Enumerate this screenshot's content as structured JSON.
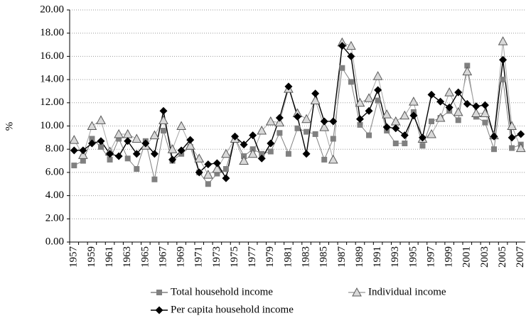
{
  "chart_data": {
    "type": "line",
    "y_label": "%",
    "categories": [
      "1957",
      null,
      "1959",
      null,
      "1961",
      null,
      "1963",
      null,
      "1965",
      null,
      "1967",
      null,
      "1969",
      null,
      "1971",
      null,
      "1973",
      null,
      "1975",
      null,
      "1977",
      null,
      "1979",
      null,
      "1981",
      null,
      "1983",
      null,
      "1985",
      null,
      "1987",
      null,
      "1989",
      null,
      "1991",
      null,
      "1993",
      null,
      "1995",
      null,
      "1997",
      null,
      "1999",
      null,
      "2001",
      null,
      "2003",
      null,
      "2005",
      null,
      "2007"
    ],
    "ylim": [
      0,
      20
    ],
    "yticks": [
      {
        "value": 0,
        "label": "0.00"
      },
      {
        "value": 2,
        "label": "2.00"
      },
      {
        "value": 4,
        "label": "4.00"
      },
      {
        "value": 6,
        "label": "6.00"
      },
      {
        "value": 8,
        "label": "8.00"
      },
      {
        "value": 10,
        "label": "10.00"
      },
      {
        "value": 12,
        "label": "12.00"
      },
      {
        "value": 14,
        "label": "14.00"
      },
      {
        "value": 16,
        "label": "16.00"
      },
      {
        "value": 18,
        "label": "18.00"
      },
      {
        "value": 20,
        "label": "20.00"
      }
    ],
    "grid": true,
    "legend": "bottom",
    "series": [
      {
        "name": "Total household income",
        "color": "#808080",
        "marker": "square",
        "values": [
          6.6,
          7.0,
          8.9,
          8.2,
          7.1,
          8.9,
          7.2,
          6.3,
          8.7,
          5.4,
          9.6,
          7.0,
          7.6,
          8.2,
          6.0,
          5.0,
          5.9,
          6.3,
          9.0,
          7.4,
          8.0,
          7.6,
          7.8,
          9.4,
          7.6,
          9.8,
          9.5,
          9.3,
          7.1,
          8.9,
          15.0,
          13.8,
          10.1,
          9.2,
          12.2,
          9.6,
          8.5,
          8.5,
          11.2,
          8.3,
          10.4,
          10.7,
          11.3,
          10.5,
          15.2,
          10.8,
          10.3,
          8.0,
          14.0,
          8.1,
          8.4
        ]
      },
      {
        "name": "Individual income",
        "color": "#a6a6a6",
        "marker": "triangle",
        "values": [
          8.8,
          7.5,
          10.0,
          10.5,
          7.8,
          9.3,
          9.3,
          8.9,
          8.3,
          9.2,
          10.5,
          8.0,
          10.0,
          8.3,
          7.2,
          5.8,
          6.3,
          7.6,
          8.9,
          7.0,
          7.6,
          9.6,
          10.4,
          10.3,
          13.2,
          11.1,
          10.6,
          12.2,
          9.9,
          7.1,
          17.2,
          16.9,
          12.0,
          12.4,
          14.3,
          11.0,
          10.4,
          10.9,
          12.1,
          8.9,
          9.3,
          10.7,
          12.9,
          11.2,
          14.7,
          11.1,
          11.1,
          9.2,
          17.3,
          10.0,
          8.1
        ]
      },
      {
        "name": "Per capita household income",
        "color": "#000000",
        "marker": "diamond",
        "values": [
          7.9,
          7.9,
          8.5,
          8.7,
          7.6,
          7.4,
          8.7,
          7.6,
          8.5,
          7.6,
          11.3,
          7.1,
          7.9,
          8.8,
          6.0,
          6.7,
          6.8,
          5.5,
          9.1,
          8.4,
          9.2,
          7.2,
          8.5,
          10.7,
          13.4,
          10.8,
          7.6,
          12.8,
          10.4,
          10.4,
          16.9,
          16.0,
          10.6,
          11.3,
          13.1,
          9.9,
          9.8,
          9.2,
          10.9,
          9.0,
          12.7,
          12.1,
          11.6,
          12.9,
          11.9,
          11.7,
          11.8,
          9.1,
          15.7,
          9.0,
          9.3
        ]
      }
    ]
  }
}
